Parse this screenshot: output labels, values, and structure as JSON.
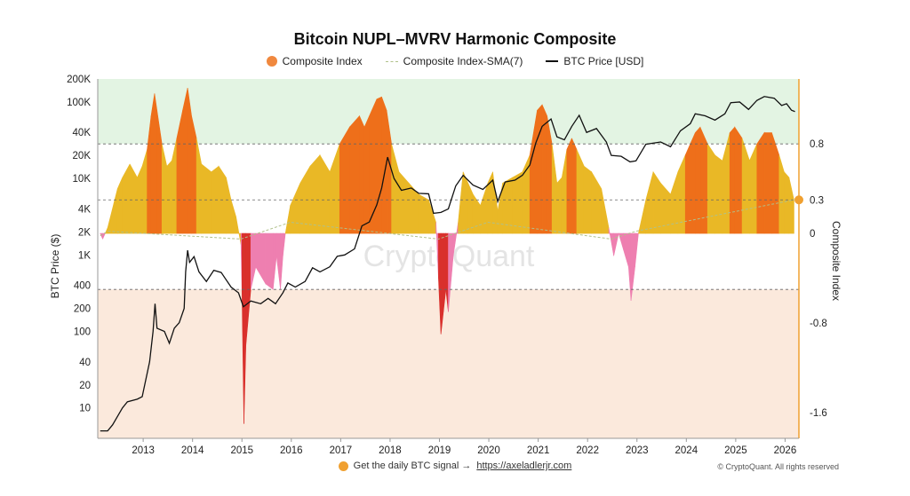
{
  "chart_data": {
    "type": "area",
    "title": "Bitcoin NUPL–MVRV Harmonic Composite",
    "legend_position": "top-center",
    "legend": [
      {
        "name": "Composite Index",
        "marker": "dot",
        "color": "#f0883e"
      },
      {
        "name": "Composite Index-SMA(7)",
        "marker": "dashed-line",
        "color": "#b0c08a"
      },
      {
        "name": "BTC Price [USD]",
        "marker": "line",
        "color": "#111111"
      }
    ],
    "watermark": "CryptoQuant",
    "x_axis": {
      "ticks": [
        "2013",
        "2014",
        "2015",
        "2016",
        "2017",
        "2018",
        "2019",
        "2020",
        "2021",
        "2022",
        "2023",
        "2024",
        "2025",
        "2026"
      ],
      "range": [
        2012.1,
        2026.3
      ]
    },
    "y_left": {
      "label": "BTC Price ($)",
      "scale": "log",
      "range": [
        4,
        200000
      ],
      "ticks": [
        10,
        20,
        40,
        100,
        200,
        400,
        1000,
        2000,
        4000,
        10000,
        20000,
        40000,
        100000,
        200000
      ],
      "tick_labels": [
        "10",
        "20",
        "40",
        "100",
        "200",
        "400",
        "1K",
        "2K",
        "4K",
        "10K",
        "20K",
        "40K",
        "100K",
        "200K"
      ]
    },
    "y_right": {
      "label": "Composite Index",
      "range": [
        -1.83,
        1.38
      ],
      "ticks": [
        -1.6,
        -0.8,
        0,
        0.3,
        0.8
      ],
      "tick_labels": [
        "-1.6",
        "-0.8",
        "0",
        "0.3",
        "0.8"
      ]
    },
    "bands": [
      {
        "from": 0.8,
        "to": 1.38,
        "color": "#e3f4e3"
      },
      {
        "from": -1.83,
        "to": -0.5,
        "color": "#fbe9dc"
      }
    ],
    "reference_lines": [
      0.8,
      0.3,
      -0.5
    ],
    "zone_colors": {
      "neg_mild": "#ee7fb0",
      "neg_strong": "#d9302c",
      "pos_mild": "#e9b826",
      "pos_strong": "#ee6f1a"
    },
    "composite_index": [
      [
        2012.15,
        0
      ],
      [
        2012.2,
        -0.05
      ],
      [
        2012.25,
        0
      ],
      [
        2012.3,
        0.05
      ],
      [
        2012.5,
        0.4
      ],
      [
        2012.6,
        0.5
      ],
      [
        2012.75,
        0.62
      ],
      [
        2012.9,
        0.5
      ],
      [
        2013.0,
        0.6
      ],
      [
        2013.1,
        0.75
      ],
      [
        2013.18,
        1.05
      ],
      [
        2013.25,
        1.25
      ],
      [
        2013.3,
        1.1
      ],
      [
        2013.4,
        0.8
      ],
      [
        2013.5,
        0.6
      ],
      [
        2013.6,
        0.65
      ],
      [
        2013.7,
        0.85
      ],
      [
        2013.82,
        1.1
      ],
      [
        2013.92,
        1.3
      ],
      [
        2014.0,
        1.05
      ],
      [
        2014.1,
        0.85
      ],
      [
        2014.2,
        0.62
      ],
      [
        2014.4,
        0.55
      ],
      [
        2014.55,
        0.6
      ],
      [
        2014.7,
        0.5
      ],
      [
        2014.8,
        0.3
      ],
      [
        2014.9,
        0.15
      ],
      [
        2015.0,
        -0.1
      ],
      [
        2015.02,
        -0.5
      ],
      [
        2015.06,
        -1.7
      ],
      [
        2015.1,
        -1.0
      ],
      [
        2015.2,
        -0.5
      ],
      [
        2015.3,
        -0.3
      ],
      [
        2015.5,
        -0.45
      ],
      [
        2015.65,
        -0.5
      ],
      [
        2015.72,
        -0.2
      ],
      [
        2015.8,
        -0.5
      ],
      [
        2015.85,
        -0.2
      ],
      [
        2015.9,
        0
      ],
      [
        2016.0,
        0.25
      ],
      [
        2016.2,
        0.45
      ],
      [
        2016.4,
        0.6
      ],
      [
        2016.6,
        0.7
      ],
      [
        2016.8,
        0.55
      ],
      [
        2017.0,
        0.8
      ],
      [
        2017.2,
        0.95
      ],
      [
        2017.4,
        1.05
      ],
      [
        2017.5,
        0.95
      ],
      [
        2017.6,
        1.05
      ],
      [
        2017.75,
        1.2
      ],
      [
        2017.85,
        1.22
      ],
      [
        2017.95,
        1.1
      ],
      [
        2018.05,
        0.8
      ],
      [
        2018.2,
        0.55
      ],
      [
        2018.4,
        0.45
      ],
      [
        2018.6,
        0.35
      ],
      [
        2018.8,
        0.3
      ],
      [
        2018.95,
        0.1
      ],
      [
        2019.0,
        -0.4
      ],
      [
        2019.05,
        -0.9
      ],
      [
        2019.1,
        -0.7
      ],
      [
        2019.15,
        -0.5
      ],
      [
        2019.2,
        -0.7
      ],
      [
        2019.3,
        -0.2
      ],
      [
        2019.4,
        0.1
      ],
      [
        2019.5,
        0.55
      ],
      [
        2019.6,
        0.45
      ],
      [
        2019.7,
        0.35
      ],
      [
        2019.85,
        0.25
      ],
      [
        2020.0,
        0.45
      ],
      [
        2020.1,
        0.55
      ],
      [
        2020.2,
        0.2
      ],
      [
        2020.3,
        0.45
      ],
      [
        2020.5,
        0.5
      ],
      [
        2020.7,
        0.55
      ],
      [
        2020.85,
        0.7
      ],
      [
        2021.0,
        1.1
      ],
      [
        2021.1,
        1.15
      ],
      [
        2021.2,
        1.05
      ],
      [
        2021.3,
        0.8
      ],
      [
        2021.4,
        0.45
      ],
      [
        2021.5,
        0.5
      ],
      [
        2021.6,
        0.75
      ],
      [
        2021.7,
        0.85
      ],
      [
        2021.8,
        0.75
      ],
      [
        2021.95,
        0.6
      ],
      [
        2022.1,
        0.55
      ],
      [
        2022.3,
        0.4
      ],
      [
        2022.45,
        0.05
      ],
      [
        2022.55,
        -0.2
      ],
      [
        2022.65,
        0
      ],
      [
        2022.75,
        -0.15
      ],
      [
        2022.85,
        -0.3
      ],
      [
        2022.9,
        -0.6
      ],
      [
        2022.98,
        -0.3
      ],
      [
        2023.05,
        0
      ],
      [
        2023.2,
        0.3
      ],
      [
        2023.35,
        0.55
      ],
      [
        2023.5,
        0.45
      ],
      [
        2023.7,
        0.35
      ],
      [
        2023.85,
        0.55
      ],
      [
        2024.0,
        0.7
      ],
      [
        2024.2,
        0.9
      ],
      [
        2024.3,
        0.95
      ],
      [
        2024.45,
        0.8
      ],
      [
        2024.6,
        0.7
      ],
      [
        2024.75,
        0.65
      ],
      [
        2024.9,
        0.9
      ],
      [
        2025.0,
        0.95
      ],
      [
        2025.15,
        0.85
      ],
      [
        2025.3,
        0.65
      ],
      [
        2025.45,
        0.8
      ],
      [
        2025.6,
        0.9
      ],
      [
        2025.75,
        0.9
      ],
      [
        2025.9,
        0.7
      ],
      [
        2026.0,
        0.55
      ],
      [
        2026.1,
        0.5
      ],
      [
        2026.2,
        0.3
      ]
    ],
    "btc_price": [
      [
        2012.15,
        5
      ],
      [
        2012.3,
        5
      ],
      [
        2012.4,
        6
      ],
      [
        2012.6,
        10
      ],
      [
        2012.7,
        12
      ],
      [
        2012.9,
        13
      ],
      [
        2013.0,
        14
      ],
      [
        2013.15,
        40
      ],
      [
        2013.22,
        100
      ],
      [
        2013.26,
        230
      ],
      [
        2013.3,
        110
      ],
      [
        2013.45,
        100
      ],
      [
        2013.55,
        70
      ],
      [
        2013.65,
        110
      ],
      [
        2013.75,
        130
      ],
      [
        2013.85,
        200
      ],
      [
        2013.88,
        600
      ],
      [
        2013.92,
        1150
      ],
      [
        2013.96,
        800
      ],
      [
        2014.05,
        950
      ],
      [
        2014.15,
        600
      ],
      [
        2014.3,
        450
      ],
      [
        2014.45,
        630
      ],
      [
        2014.6,
        590
      ],
      [
        2014.8,
        380
      ],
      [
        2014.95,
        320
      ],
      [
        2015.05,
        210
      ],
      [
        2015.2,
        250
      ],
      [
        2015.4,
        230
      ],
      [
        2015.55,
        270
      ],
      [
        2015.7,
        230
      ],
      [
        2015.85,
        320
      ],
      [
        2015.95,
        430
      ],
      [
        2016.1,
        380
      ],
      [
        2016.3,
        450
      ],
      [
        2016.45,
        680
      ],
      [
        2016.6,
        600
      ],
      [
        2016.8,
        700
      ],
      [
        2016.95,
        960
      ],
      [
        2017.1,
        1000
      ],
      [
        2017.3,
        1200
      ],
      [
        2017.45,
        2400
      ],
      [
        2017.6,
        2700
      ],
      [
        2017.75,
        4500
      ],
      [
        2017.85,
        7500
      ],
      [
        2017.97,
        19000
      ],
      [
        2018.1,
        10000
      ],
      [
        2018.25,
        7000
      ],
      [
        2018.45,
        7500
      ],
      [
        2018.6,
        6400
      ],
      [
        2018.8,
        6300
      ],
      [
        2018.9,
        3500
      ],
      [
        2019.05,
        3600
      ],
      [
        2019.2,
        4000
      ],
      [
        2019.35,
        8000
      ],
      [
        2019.5,
        11000
      ],
      [
        2019.7,
        8200
      ],
      [
        2019.9,
        7200
      ],
      [
        2020.1,
        9500
      ],
      [
        2020.2,
        5000
      ],
      [
        2020.35,
        9000
      ],
      [
        2020.55,
        9500
      ],
      [
        2020.7,
        11000
      ],
      [
        2020.85,
        15000
      ],
      [
        2020.97,
        29000
      ],
      [
        2021.1,
        48000
      ],
      [
        2021.28,
        60000
      ],
      [
        2021.4,
        35000
      ],
      [
        2021.55,
        32000
      ],
      [
        2021.7,
        48000
      ],
      [
        2021.85,
        67000
      ],
      [
        2022.0,
        40000
      ],
      [
        2022.2,
        45000
      ],
      [
        2022.4,
        30000
      ],
      [
        2022.5,
        20000
      ],
      [
        2022.7,
        19500
      ],
      [
        2022.88,
        16500
      ],
      [
        2023.0,
        17000
      ],
      [
        2023.2,
        28000
      ],
      [
        2023.5,
        30000
      ],
      [
        2023.7,
        26000
      ],
      [
        2023.9,
        42000
      ],
      [
        2024.1,
        52000
      ],
      [
        2024.2,
        70000
      ],
      [
        2024.4,
        66000
      ],
      [
        2024.6,
        58000
      ],
      [
        2024.8,
        70000
      ],
      [
        2024.92,
        98000
      ],
      [
        2025.1,
        100000
      ],
      [
        2025.28,
        80000
      ],
      [
        2025.45,
        105000
      ],
      [
        2025.6,
        118000
      ],
      [
        2025.8,
        112000
      ],
      [
        2025.95,
        90000
      ],
      [
        2026.05,
        95000
      ],
      [
        2026.15,
        78000
      ],
      [
        2026.22,
        75000
      ]
    ],
    "sma_index": [
      [
        2012.15,
        -0.02
      ],
      [
        2012.3,
        0.02
      ],
      [
        2015.0,
        -0.05
      ],
      [
        2016.0,
        0.1
      ],
      [
        2019.0,
        -0.05
      ],
      [
        2020.0,
        0.1
      ],
      [
        2022.5,
        -0.05
      ],
      [
        2023.0,
        0.02
      ],
      [
        2026.2,
        0.3
      ]
    ]
  },
  "footer": {
    "cta": "Get the daily BTC signal →",
    "link": "https://axeladlerjr.com"
  },
  "copyright": "© CryptoQuant. All rights reserved"
}
